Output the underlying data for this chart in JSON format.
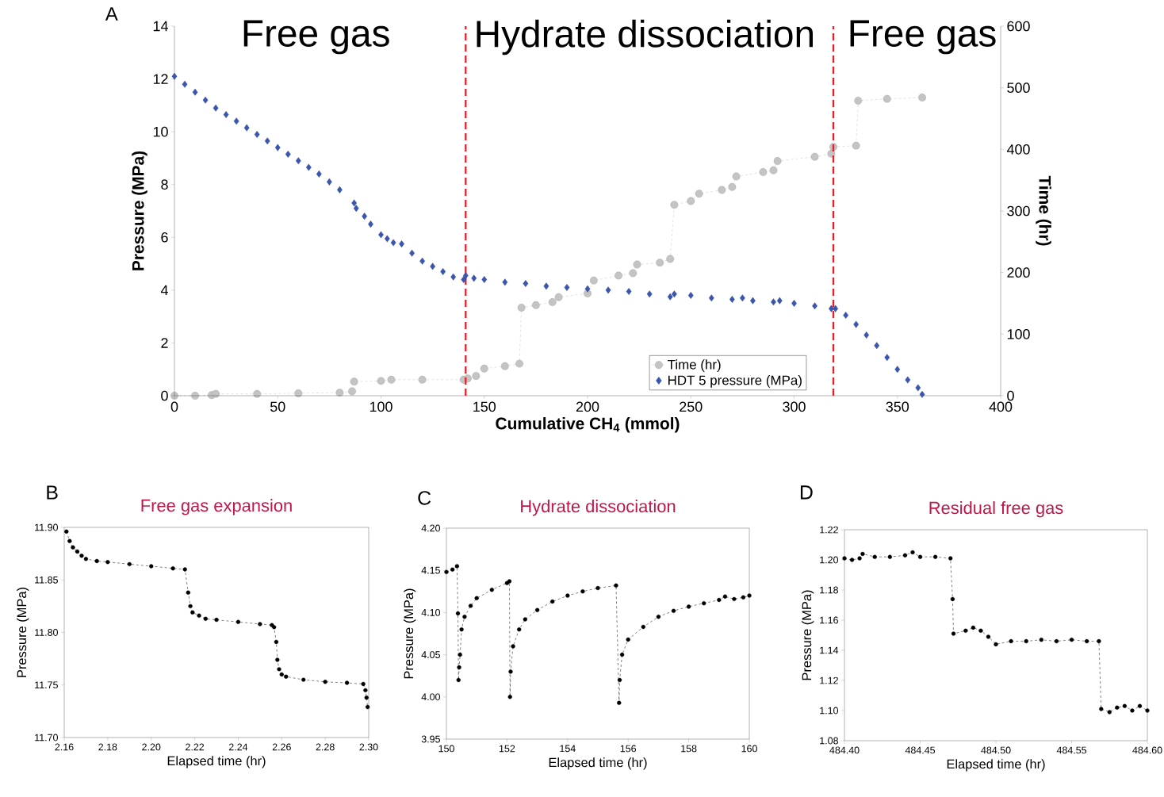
{
  "chart_data": [
    {
      "type": "scatter",
      "xlabel": "Cumulative CH$_{4}$ (mmol)",
      "ylabel": "Pressure (MPa)",
      "y2label": "Time (hr)",
      "annotations": [
        "A",
        "Free gas",
        "Hydrate dissociation",
        "Free gas"
      ],
      "xlim": [
        0,
        400
      ],
      "xticks": [
        0,
        50,
        100,
        150,
        200,
        250,
        300,
        350,
        400
      ],
      "ylim": [
        0,
        14
      ],
      "yticks": [
        0,
        2,
        4,
        6,
        8,
        10,
        12,
        14
      ],
      "y2lim": [
        0,
        600
      ],
      "y2ticks": [
        0,
        100,
        200,
        300,
        400,
        500,
        600
      ],
      "legend": "bottom right",
      "ref_lines": [
        {
          "axis": "x",
          "value": 141,
          "color": "#e0202a",
          "line_style": "dashed"
        },
        {
          "axis": "x",
          "value": 319,
          "color": "#e0202a",
          "line_style": "dashed"
        }
      ],
      "series": [
        {
          "name": "Time (hr)",
          "type": "line",
          "axis": "y2",
          "marker": "circle",
          "line_style": "dashed",
          "color": "#c4c4c4",
          "x": [
            0,
            10,
            18,
            20,
            40,
            60,
            80,
            86,
            87,
            100,
            105,
            120,
            140,
            142,
            146,
            150,
            160,
            167,
            168,
            175,
            183,
            186,
            200,
            203,
            215,
            222,
            224,
            235,
            240,
            242,
            250,
            254,
            265,
            270,
            272,
            285,
            290,
            292,
            310,
            318,
            319,
            330,
            331,
            345,
            362
          ],
          "values": [
            0,
            0,
            1,
            3,
            3,
            4,
            5,
            7,
            23,
            24,
            26,
            26,
            26,
            28,
            32,
            44,
            48,
            52,
            143,
            147,
            152,
            160,
            166,
            187,
            195,
            199,
            213,
            216,
            222,
            310,
            316,
            328,
            334,
            339,
            356,
            363,
            366,
            381,
            388,
            393,
            404,
            406,
            479,
            482,
            484
          ]
        },
        {
          "name": "HDT 5 pressure (MPa)",
          "type": "scatter",
          "marker": "diamond",
          "color": "#3a56b0",
          "x": [
            0,
            5,
            10,
            15,
            20,
            25,
            30,
            35,
            40,
            45,
            50,
            55,
            60,
            65,
            70,
            75,
            80,
            87,
            88,
            92,
            95,
            100,
            103,
            106,
            110,
            115,
            120,
            125,
            130,
            135,
            140,
            141,
            145,
            150,
            160,
            170,
            180,
            190,
            200,
            210,
            220,
            230,
            240,
            242,
            250,
            260,
            270,
            275,
            280,
            290,
            293,
            300,
            310,
            318,
            320,
            325,
            330,
            335,
            340,
            345,
            350,
            355,
            360,
            362
          ],
          "values": [
            12.1,
            11.8,
            11.5,
            11.2,
            10.9,
            10.65,
            10.4,
            10.15,
            9.9,
            9.65,
            9.4,
            9.15,
            8.9,
            8.65,
            8.4,
            8.1,
            7.8,
            7.3,
            7.1,
            6.8,
            6.5,
            6.1,
            5.95,
            5.8,
            5.75,
            5.4,
            5.1,
            4.9,
            4.7,
            4.5,
            4.4,
            4.55,
            4.45,
            4.4,
            4.3,
            4.25,
            4.15,
            4.1,
            4.05,
            4.0,
            3.95,
            3.85,
            3.75,
            3.85,
            3.8,
            3.7,
            3.65,
            3.7,
            3.6,
            3.55,
            3.6,
            3.5,
            3.4,
            3.3,
            3.3,
            3.05,
            2.7,
            2.3,
            1.9,
            1.45,
            1.0,
            0.6,
            0.3,
            0.05
          ]
        }
      ]
    },
    {
      "type": "line",
      "title": "Free gas expansion",
      "xlabel": "Elapsed time (hr)",
      "ylabel": "Pressure (MPa)",
      "annotations": [
        "B"
      ],
      "marker": "circle",
      "line_style": "dashed",
      "xlim": [
        2.16,
        2.3
      ],
      "xticks": [
        2.16,
        2.18,
        {
          "value": 2.2,
          "label": "2.20"
        },
        2.22,
        2.24,
        2.26,
        2.28,
        {
          "value": 2.3,
          "label": "2.30"
        }
      ],
      "ylim": [
        11.7,
        11.9
      ],
      "yticks": [
        {
          "value": 11.7,
          "label": "11.70"
        },
        11.75,
        {
          "value": 11.8,
          "label": "11.80"
        },
        11.85,
        {
          "value": 11.9,
          "label": "11.90"
        }
      ],
      "series": [
        {
          "color": "#000000",
          "x": [
            2.161,
            2.1625,
            2.164,
            2.166,
            2.168,
            2.17,
            2.175,
            2.18,
            2.19,
            2.2,
            2.21,
            2.2155,
            2.217,
            2.218,
            2.219,
            2.222,
            2.225,
            2.23,
            2.24,
            2.25,
            2.2555,
            2.2565,
            2.2575,
            2.258,
            2.2588,
            2.26,
            2.262,
            2.27,
            2.28,
            2.29,
            2.2975,
            2.2985,
            2.299,
            2.2995
          ],
          "values": [
            11.896,
            11.887,
            11.881,
            11.877,
            11.873,
            11.87,
            11.868,
            11.867,
            11.865,
            11.863,
            11.861,
            11.86,
            11.838,
            11.825,
            11.819,
            11.816,
            11.813,
            11.812,
            11.81,
            11.808,
            11.807,
            11.805,
            11.791,
            11.774,
            11.765,
            11.76,
            11.758,
            11.755,
            11.753,
            11.752,
            11.751,
            11.745,
            11.738,
            11.729
          ]
        }
      ]
    },
    {
      "type": "line",
      "title": "Hydrate dissociation",
      "xlabel": "Elapsed time (hr)",
      "ylabel": "Pressure (MPa)",
      "annotations": [
        "C"
      ],
      "marker": "circle",
      "line_style": "dashed",
      "xlim": [
        150,
        160
      ],
      "xticks": [
        150,
        152,
        154,
        156,
        158,
        160
      ],
      "ylim": [
        3.95,
        4.2
      ],
      "yticks": [
        3.95,
        {
          "value": 4.0,
          "label": "4.00"
        },
        4.05,
        {
          "value": 4.1,
          "label": "4.10"
        },
        4.15,
        {
          "value": 4.2,
          "label": "4.20"
        }
      ],
      "series": [
        {
          "color": "#000000",
          "x": [
            150,
            150.2,
            150.35,
            150.38,
            150.4,
            150.42,
            150.45,
            150.5,
            150.6,
            150.8,
            151,
            151.5,
            152,
            152.08,
            152.1,
            152.12,
            152.2,
            152.4,
            152.6,
            153,
            153.5,
            154,
            154.5,
            155,
            155.6,
            155.7,
            155.72,
            155.8,
            156,
            156.5,
            157,
            157.5,
            158,
            158.5,
            159,
            159.2,
            159.5,
            159.8,
            160
          ],
          "values": [
            4.148,
            4.151,
            4.155,
            4.099,
            4.02,
            4.035,
            4.05,
            4.08,
            4.095,
            4.108,
            4.117,
            4.127,
            4.135,
            4.137,
            4.0,
            4.03,
            4.06,
            4.08,
            4.092,
            4.103,
            4.113,
            4.12,
            4.125,
            4.129,
            4.132,
            3.993,
            4.02,
            4.05,
            4.068,
            4.083,
            4.095,
            4.102,
            4.107,
            4.111,
            4.115,
            4.119,
            4.116,
            4.118,
            4.12
          ]
        }
      ]
    },
    {
      "type": "line",
      "title": "Residual free gas",
      "xlabel": "Elapsed time (hr)",
      "ylabel": "Pressure (MPa)",
      "annotations": [
        "D"
      ],
      "marker": "circle",
      "line_style": "dashed",
      "xlim": [
        484.4,
        484.6
      ],
      "xticks": [
        {
          "value": 484.4,
          "label": "484.40"
        },
        484.45,
        {
          "value": 484.5,
          "label": "484.50"
        },
        484.55,
        {
          "value": 484.6,
          "label": "484.60"
        }
      ],
      "ylim": [
        1.08,
        1.22
      ],
      "yticks": [
        1.08,
        {
          "value": 1.1,
          "label": "1.10"
        },
        1.12,
        1.14,
        1.16,
        1.18,
        {
          "value": 1.2,
          "label": "1.20"
        },
        1.22
      ],
      "series": [
        {
          "color": "#000000",
          "x": [
            484.4,
            484.405,
            484.41,
            484.412,
            484.42,
            484.43,
            484.44,
            484.445,
            484.45,
            484.46,
            484.47,
            484.4714,
            484.472,
            484.48,
            484.485,
            484.49,
            484.495,
            484.5,
            484.51,
            484.52,
            484.53,
            484.54,
            484.55,
            484.56,
            484.568,
            484.5695,
            484.575,
            484.58,
            484.585,
            484.59,
            484.595,
            484.6
          ],
          "values": [
            1.201,
            1.2,
            1.201,
            1.204,
            1.202,
            1.202,
            1.203,
            1.205,
            1.202,
            1.202,
            1.201,
            1.174,
            1.151,
            1.153,
            1.155,
            1.153,
            1.149,
            1.144,
            1.146,
            1.146,
            1.147,
            1.146,
            1.147,
            1.146,
            1.146,
            1.101,
            1.099,
            1.102,
            1.103,
            1.1,
            1.103,
            1.1
          ]
        }
      ]
    }
  ]
}
